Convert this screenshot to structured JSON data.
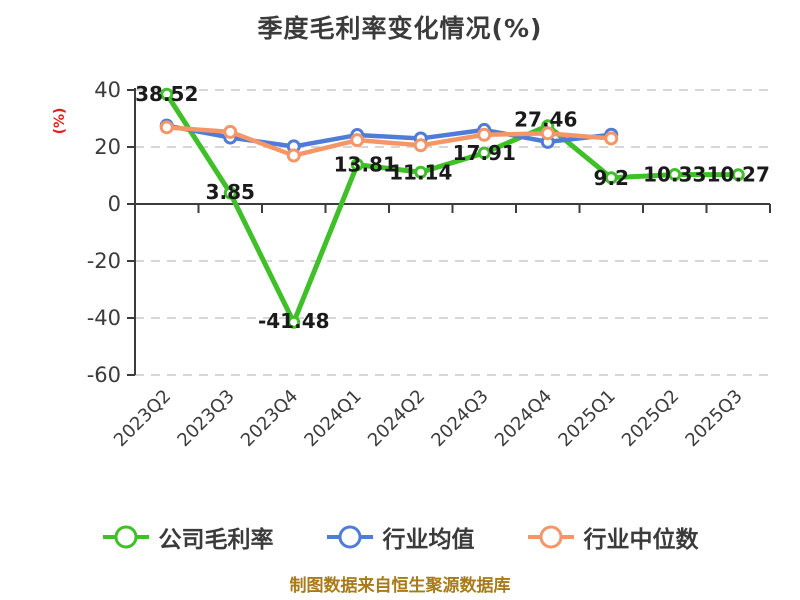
{
  "page": {
    "background": "#ffffff"
  },
  "chart_data": {
    "type": "line",
    "title": "季度毛利率变化情况(%)",
    "ylabel": "(%)",
    "categories": [
      "2023Q2",
      "2023Q3",
      "2023Q4",
      "2024Q1",
      "2024Q2",
      "2024Q3",
      "2024Q4",
      "2025Q1",
      "2025Q2",
      "2025Q3"
    ],
    "y_ticks": [
      40,
      20,
      0,
      -20,
      -40,
      -60
    ],
    "ylim": [
      -60,
      40
    ],
    "grid": "horizontal-dashed",
    "legend_position": "bottom",
    "x_label_rotation": 45,
    "series": [
      {
        "name": "公司毛利率",
        "color": "#3fbf28",
        "values": [
          38.52,
          3.85,
          -41.48,
          13.81,
          11.14,
          17.91,
          27.46,
          9.2,
          10.33,
          10.27
        ],
        "labels": [
          "38.52",
          "3.85",
          "-41.48",
          "13.81",
          "11.14",
          "17.91",
          "27.46",
          "9.2",
          "10.33",
          "10.27"
        ]
      },
      {
        "name": "行业均值",
        "color": "#4e7cd6",
        "values": [
          27.5,
          23.3,
          20.2,
          24.2,
          23.0,
          26.0,
          21.8,
          24.3,
          null,
          null
        ]
      },
      {
        "name": "行业中位数",
        "color": "#f59669",
        "values": [
          26.9,
          25.3,
          17.0,
          22.4,
          20.6,
          24.3,
          24.8,
          23.0,
          null,
          null
        ]
      }
    ],
    "value_label_offsets": {
      "dx": [
        0,
        0,
        0,
        8,
        0,
        0,
        -2,
        0,
        0,
        0
      ],
      "dy": [
        7,
        6,
        6,
        7,
        7,
        7,
        1,
        7,
        7,
        7
      ]
    }
  },
  "colors": {
    "title_text": "#3b3b3b",
    "axis": "#3c3c3c",
    "tick_label": "#3b3b3b",
    "gridline": "#d6d6d6",
    "value_label": "#1a1a1a",
    "ylabel_text": "#e02020",
    "footer_text": "#a87a1a",
    "marker_fill": "#ffffff"
  },
  "footer": {
    "text": "制图数据来自恒生聚源数据库"
  }
}
